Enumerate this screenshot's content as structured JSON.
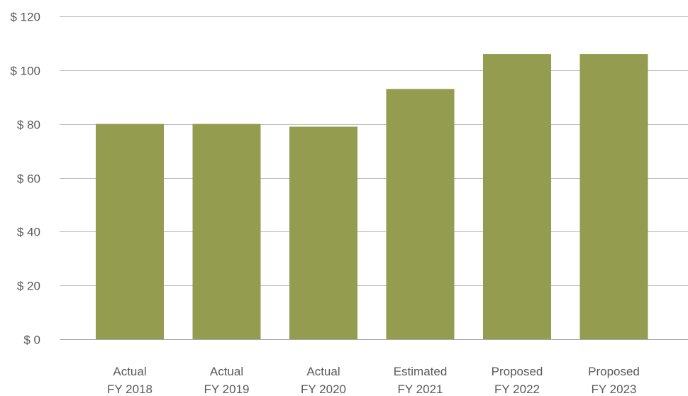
{
  "chart_data": {
    "type": "bar",
    "categories": [
      [
        "Actual",
        "FY 2018"
      ],
      [
        "Actual",
        "FY 2019"
      ],
      [
        "Actual",
        "FY 2020"
      ],
      [
        "Estimated",
        "FY 2021"
      ],
      [
        "Proposed",
        "FY 2022"
      ],
      [
        "Proposed",
        "FY 2023"
      ]
    ],
    "values": [
      80,
      80,
      79,
      93,
      106,
      106
    ],
    "yticks": [
      0,
      20,
      40,
      60,
      80,
      100,
      120
    ],
    "ytick_labels": [
      "$ 0",
      "$ 20",
      "$ 40",
      "$ 60",
      "$ 80",
      "$ 100",
      "$ 120"
    ],
    "ylim": [
      0,
      120
    ],
    "grid": true,
    "legend": "none",
    "bar_color": "#949c4f"
  }
}
